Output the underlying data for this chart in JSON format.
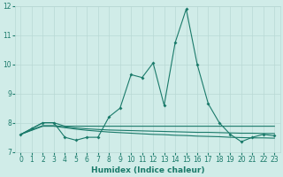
{
  "xlabel": "Humidex (Indice chaleur)",
  "x": [
    0,
    1,
    2,
    3,
    4,
    5,
    6,
    7,
    8,
    9,
    10,
    11,
    12,
    13,
    14,
    15,
    16,
    17,
    18,
    19,
    20,
    21,
    22,
    23
  ],
  "line1": [
    7.6,
    7.8,
    8.0,
    8.0,
    7.5,
    7.4,
    7.5,
    7.5,
    8.2,
    8.5,
    9.65,
    9.55,
    10.05,
    8.6,
    10.75,
    11.9,
    10.0,
    8.65,
    8.0,
    7.6,
    7.35,
    7.5,
    7.6,
    7.55
  ],
  "line2": [
    7.6,
    7.8,
    8.0,
    8.0,
    7.88,
    7.88,
    7.88,
    7.88,
    7.88,
    7.88,
    7.88,
    7.88,
    7.88,
    7.88,
    7.88,
    7.88,
    7.88,
    7.88,
    7.88,
    7.88,
    7.88,
    7.88,
    7.88,
    7.88
  ],
  "line3": [
    7.6,
    7.76,
    7.9,
    7.9,
    7.86,
    7.82,
    7.79,
    7.77,
    7.75,
    7.74,
    7.73,
    7.72,
    7.71,
    7.7,
    7.69,
    7.68,
    7.67,
    7.67,
    7.66,
    7.65,
    7.64,
    7.64,
    7.63,
    7.63
  ],
  "line4": [
    7.6,
    7.74,
    7.88,
    7.88,
    7.83,
    7.78,
    7.74,
    7.71,
    7.68,
    7.66,
    7.64,
    7.62,
    7.6,
    7.59,
    7.57,
    7.56,
    7.54,
    7.53,
    7.52,
    7.5,
    7.49,
    7.48,
    7.48,
    7.47
  ],
  "color": "#1a7a6a",
  "bg_color": "#d0ece8",
  "grid_color": "#b8d8d4",
  "ylim": [
    7.0,
    12.0
  ],
  "xlim_min": -0.5,
  "xlim_max": 23.5,
  "yticks": [
    7,
    8,
    9,
    10,
    11,
    12
  ],
  "xticks": [
    0,
    1,
    2,
    3,
    4,
    5,
    6,
    7,
    8,
    9,
    10,
    11,
    12,
    13,
    14,
    15,
    16,
    17,
    18,
    19,
    20,
    21,
    22,
    23
  ]
}
